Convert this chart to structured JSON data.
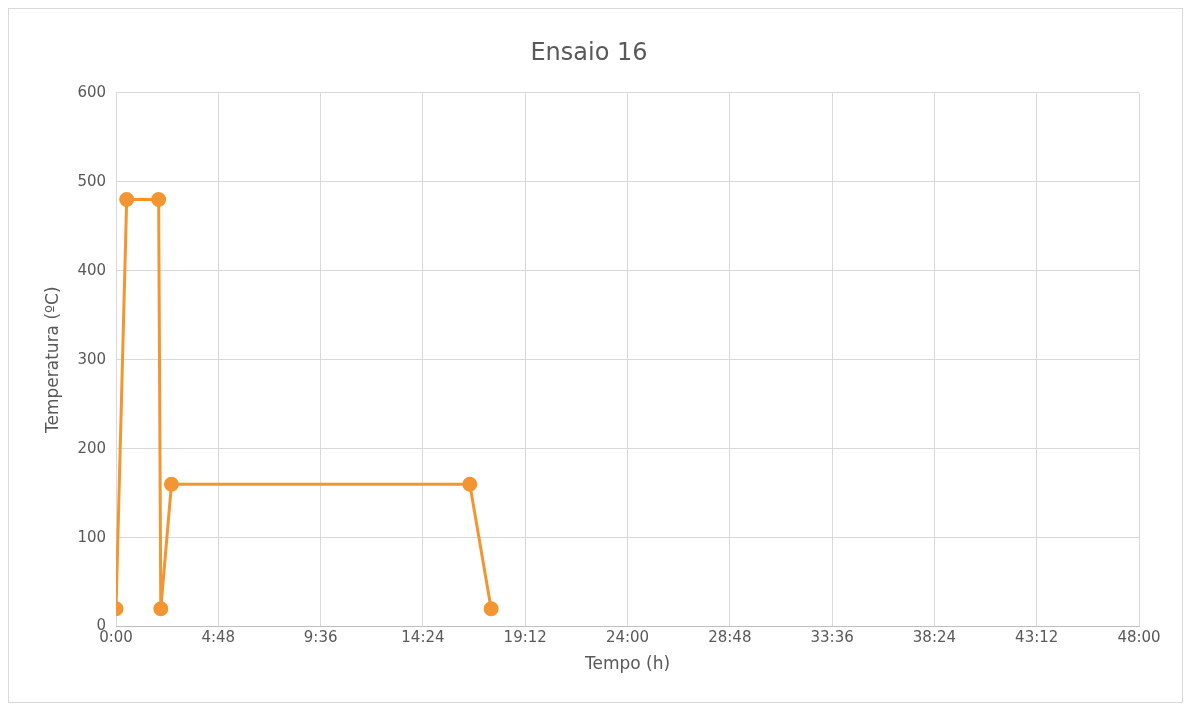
{
  "chart_data": {
    "type": "line",
    "title": "Ensaio 16",
    "xlabel": "Tempo (h)",
    "ylabel": "Temperatura (ºC)",
    "x": [
      0,
      0.5,
      2,
      2.1,
      2.6,
      16.6,
      17.6
    ],
    "series": [
      {
        "color": "#f39530",
        "values": [
          20,
          480,
          480,
          20,
          160,
          160,
          20
        ]
      }
    ],
    "xlim": [
      0,
      48
    ],
    "xticks": [
      {
        "value": 0,
        "label": "0:00"
      },
      {
        "value": 4.8,
        "label": "4:48"
      },
      {
        "value": 9.6,
        "label": "9:36"
      },
      {
        "value": 14.4,
        "label": "14:24"
      },
      {
        "value": 19.2,
        "label": "19:12"
      },
      {
        "value": 24,
        "label": "24:00"
      },
      {
        "value": 28.8,
        "label": "28:48"
      },
      {
        "value": 33.6,
        "label": "33:36"
      },
      {
        "value": 38.4,
        "label": "38:24"
      },
      {
        "value": 43.2,
        "label": "43:12"
      },
      {
        "value": 48,
        "label": "48:00"
      }
    ],
    "ylim": [
      0,
      600
    ],
    "yticks": [
      0,
      100,
      200,
      300,
      400,
      500,
      600
    ],
    "grid": true,
    "marker": "circle",
    "line_style": "solid",
    "legend": false
  }
}
